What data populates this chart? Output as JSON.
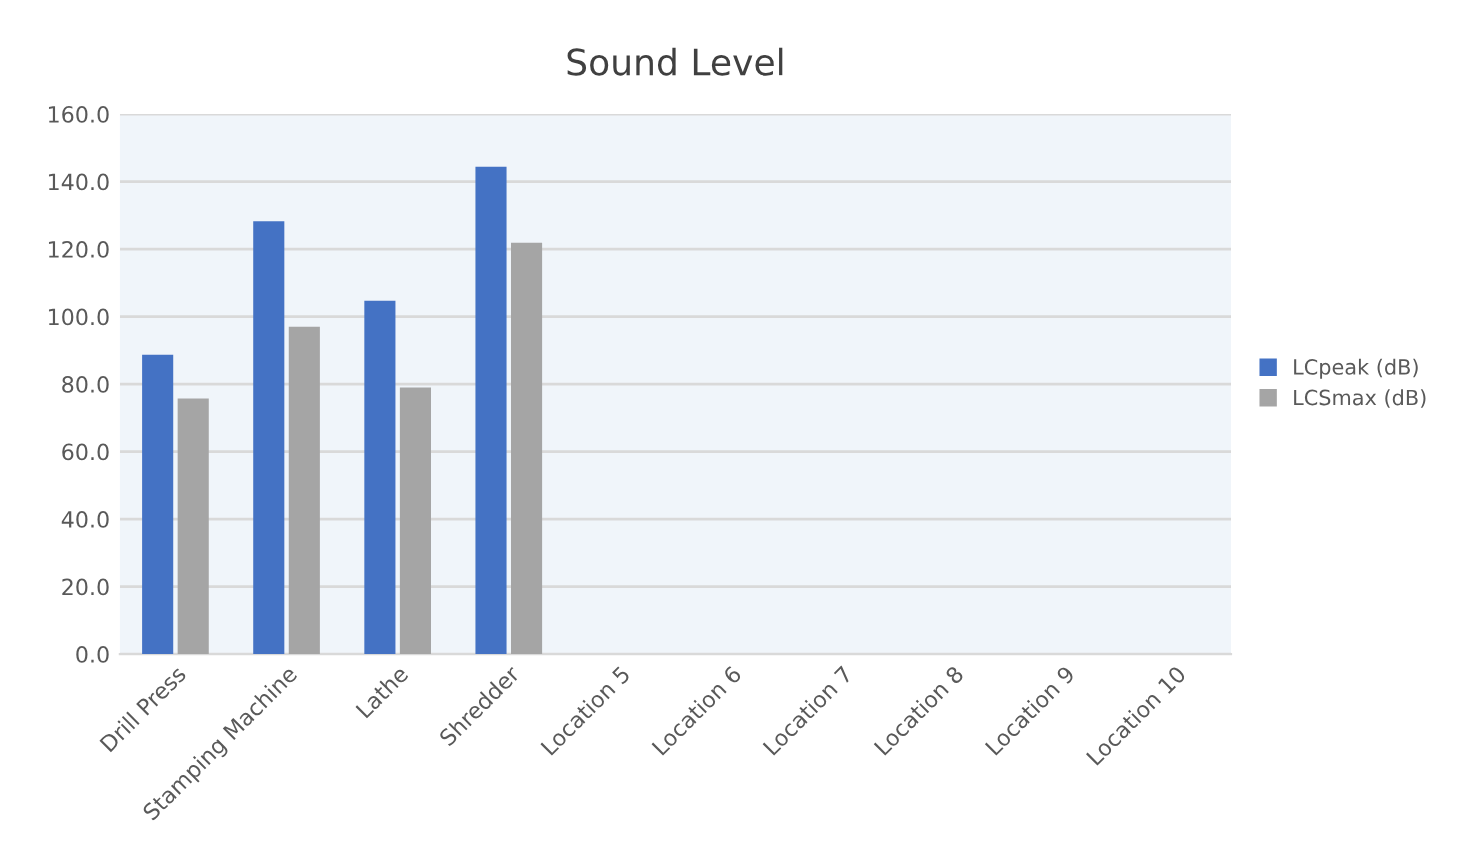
{
  "chart_data": {
    "type": "bar",
    "title": "Sound Level",
    "categories": [
      "Drill Press",
      "Stamping Machine",
      "Lathe",
      "Shredder",
      "Location 5",
      "Location 6",
      "Location 7",
      "Location 8",
      "Location 9",
      "Location 10"
    ],
    "series": [
      {
        "name": "LCpeak (dB)",
        "color": "#4472c4",
        "values": [
          88.7,
          128.2,
          104.7,
          144.4,
          null,
          null,
          null,
          null,
          null,
          null
        ]
      },
      {
        "name": "LCSmax (dB)",
        "color": "#a5a5a5",
        "values": [
          75.7,
          97.0,
          79.0,
          121.9,
          null,
          null,
          null,
          null,
          null,
          null
        ]
      }
    ],
    "ylim": [
      0,
      160
    ],
    "yticks": [
      {
        "value": 0,
        "label": "0.0"
      },
      {
        "value": 20,
        "label": "20.0"
      },
      {
        "value": 40,
        "label": "40.0"
      },
      {
        "value": 60,
        "label": "60.0"
      },
      {
        "value": 80,
        "label": "80.0"
      },
      {
        "value": 100,
        "label": "100.0"
      },
      {
        "value": 120,
        "label": "120.0"
      },
      {
        "value": 140,
        "label": "140.0"
      },
      {
        "value": 160,
        "label": "160.0"
      }
    ],
    "grid": "y",
    "legend": "right"
  }
}
